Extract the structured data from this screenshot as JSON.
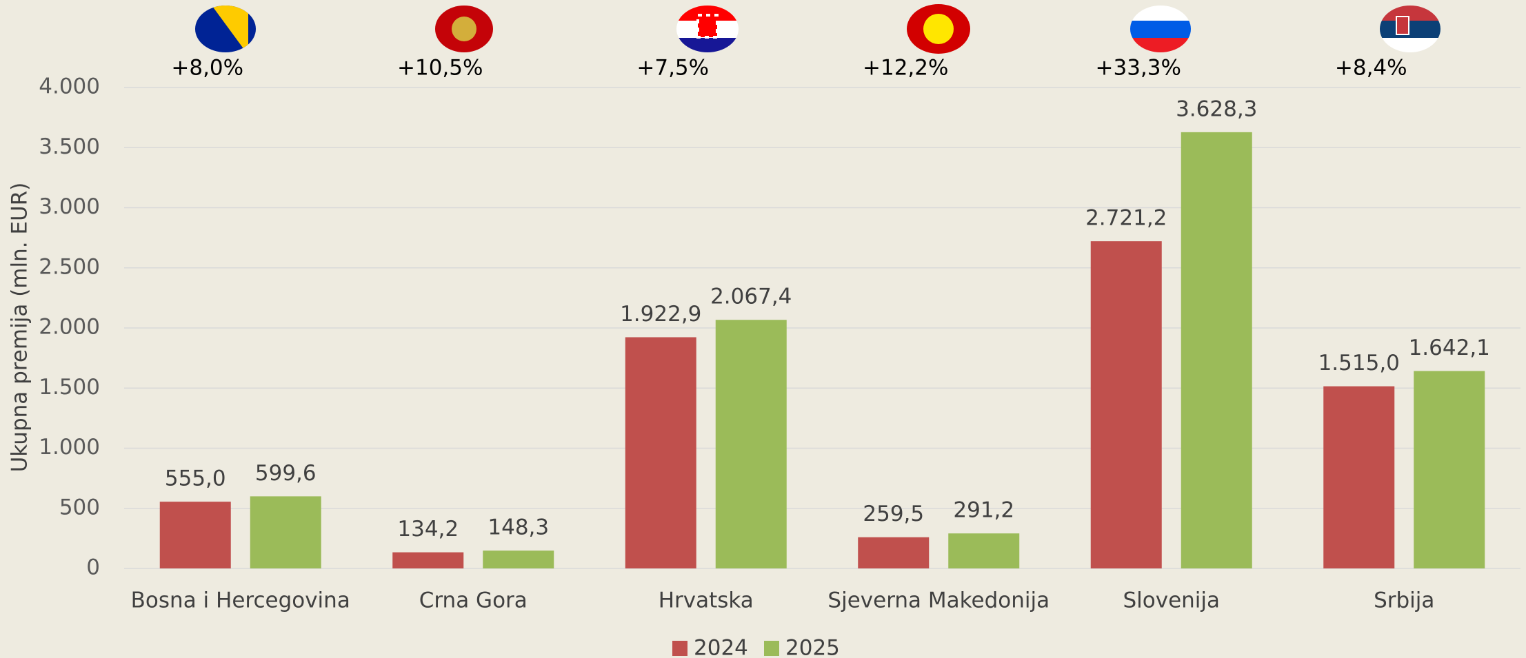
{
  "chart_data": {
    "type": "bar",
    "y_label": "Ukupna premija (mln. EUR)",
    "categories": [
      "Bosna i Hercegovina",
      "Crna Gora",
      "Hrvatska",
      "Sjeverna Makedonija",
      "Slovenija",
      "Srbija"
    ],
    "series": [
      {
        "name": "2024",
        "color": "#c0504d",
        "values": [
          555.0,
          134.2,
          1922.9,
          259.5,
          2721.2,
          1515.0
        ],
        "value_labels": [
          "555,0",
          "134,2",
          "1.922,9",
          "259,5",
          "2.721,2",
          "1.515,0"
        ]
      },
      {
        "name": "2025",
        "color": "#9bbb59",
        "values": [
          599.6,
          148.3,
          2067.4,
          291.2,
          3628.3,
          1642.1
        ],
        "value_labels": [
          "599,6",
          "148,3",
          "2.067,4",
          "291,2",
          "3.628,3",
          "1.642,1"
        ]
      }
    ],
    "annotations": [
      "+8,0%",
      "+10,5%",
      "+7,5%",
      "+12,2%",
      "+33,3%",
      "+8,4%"
    ],
    "ylim": [
      0,
      4000
    ],
    "yticks": [
      0,
      500,
      {
        "value": 1000,
        "label": "1.000"
      },
      {
        "value": 1500,
        "label": "1.500"
      },
      {
        "value": 2000,
        "label": "2.000"
      },
      {
        "value": 2500,
        "label": "2.500"
      },
      {
        "value": 3000,
        "label": "3.000"
      },
      {
        "value": 3500,
        "label": "3.500"
      },
      {
        "value": 4000,
        "label": "4.000"
      }
    ],
    "grid": true,
    "legend": "bottom"
  }
}
